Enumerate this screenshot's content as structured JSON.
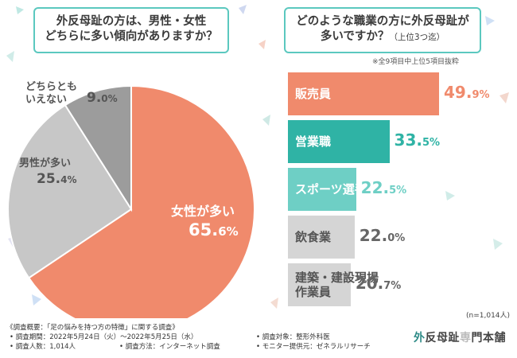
{
  "colors": {
    "female": "#f08a6c",
    "male": "#c7c7c7",
    "neither": "#9c9c9c",
    "teal_dark": "#2fb3a5",
    "teal_mid": "#6ecfc5",
    "gray_bar": "#d5d5d5",
    "border": "#5bc8bf"
  },
  "left_question": {
    "line1": "外反母趾の方は、男性・女性",
    "line2": "どちらに多い傾向がありますか？"
  },
  "right_question": {
    "line1": "どのような職業の方に外反母趾が",
    "line2": "多いですか？",
    "line2_sub": "（上位3つ迄）"
  },
  "top_note": "※全9項目中上位5項目抜粋",
  "n_note": "(n=1,014人)",
  "survey": {
    "overview": "《調査概要：「足の悩みを持つ方の特徴」に関する調査》",
    "period": "• 調査期間：2022年5月24日（火）〜2022年5月25日（水）",
    "people": "• 調査人数：1,014人",
    "method": "• 調査方法：インターネット調査",
    "target": "• 調査対象：整形外科医",
    "monitor": "• モニター提供元：ゼネラルリサーチ"
  },
  "brand": {
    "part1": "外",
    "part2": "反母趾",
    "part3": "専",
    "part4": "門本舗"
  },
  "chart_data": [
    {
      "type": "pie",
      "title": "外反母趾の方は、男性・女性どちらに多い傾向がありますか？",
      "slices": [
        {
          "label": "女性が多い",
          "value": 65.6,
          "int": "65.",
          "dec": "6%"
        },
        {
          "label": "男性が多い",
          "value": 25.4,
          "int": "25.",
          "dec": "4%"
        },
        {
          "label_line1": "どちらとも",
          "label_line2": "いえない",
          "value": 9.0,
          "int": "9.",
          "dec": "0%"
        }
      ]
    },
    {
      "type": "bar",
      "title": "どのような職業の方に外反母趾が多いですか？（上位3つ迄）",
      "orientation": "horizontal",
      "xlim": [
        0,
        50
      ],
      "categories": [
        "販売員",
        "営業職",
        "スポーツ選手",
        "飲食業",
        "建築・建設現場作業員"
      ],
      "values": [
        49.9,
        33.5,
        22.5,
        22.0,
        20.7
      ],
      "bars": [
        {
          "label": "販売員",
          "int": "49.",
          "dec": "9%"
        },
        {
          "label": "営業職",
          "int": "33.",
          "dec": "5%"
        },
        {
          "label": "スポーツ選手",
          "int": "22.",
          "dec": "5%"
        },
        {
          "label": "飲食業",
          "int": "22.",
          "dec": "0%"
        },
        {
          "label_line1": "建築・建設現場",
          "label_line2": "作業員",
          "int": "20.",
          "dec": "7%"
        }
      ]
    }
  ]
}
